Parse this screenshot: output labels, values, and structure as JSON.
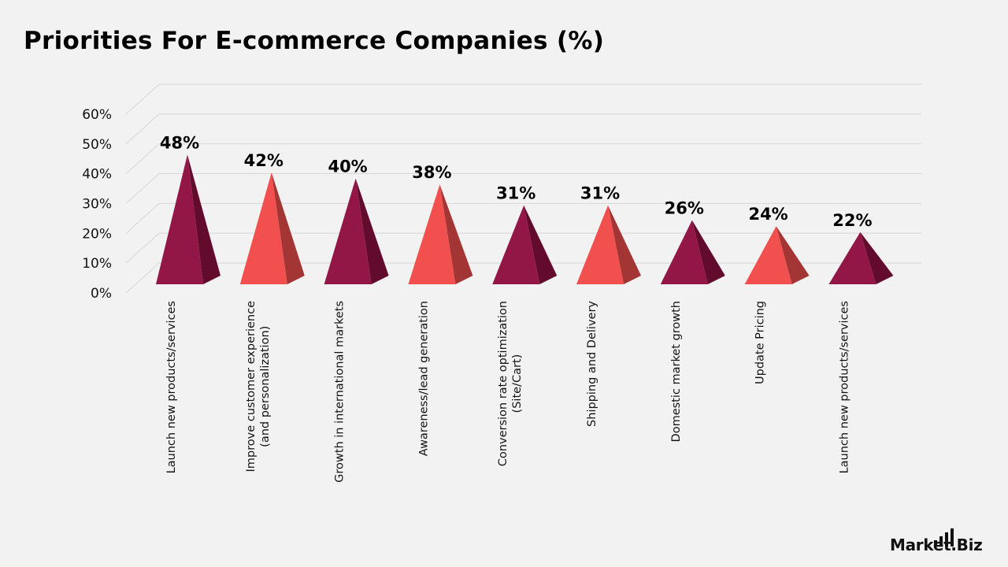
{
  "title": "Priorities For E-commerce Companies (%)",
  "brand": "Market.Biz",
  "colors": {
    "dark_front": "#921746",
    "dark_side": "#620b2d",
    "light_front": "#f2504f",
    "light_side": "#a33535",
    "grid": "#d6d6d6",
    "axis_text": "#111111"
  },
  "chart_data": {
    "type": "bar",
    "style": "3d-pyramid",
    "categories": [
      "Launch new products/services",
      "Improve customer experience\n(and personalization)",
      "Growth in international markets",
      "Awareness/lead generation",
      "Conversion rate optimization\n(Site/Cart)",
      "Shipping and Delivery",
      "Domestic market growth",
      "Update Pricing",
      "Launch new products/services"
    ],
    "values": [
      48,
      42,
      40,
      38,
      31,
      31,
      26,
      24,
      22
    ],
    "value_labels": [
      "48%",
      "42%",
      "40%",
      "38%",
      "31%",
      "31%",
      "26%",
      "24%",
      "22%"
    ],
    "yticks": [
      "0%",
      "10%",
      "20%",
      "30%",
      "40%",
      "50%",
      "60%"
    ],
    "ylim": [
      0,
      60
    ],
    "grid": true,
    "legend": "none"
  }
}
